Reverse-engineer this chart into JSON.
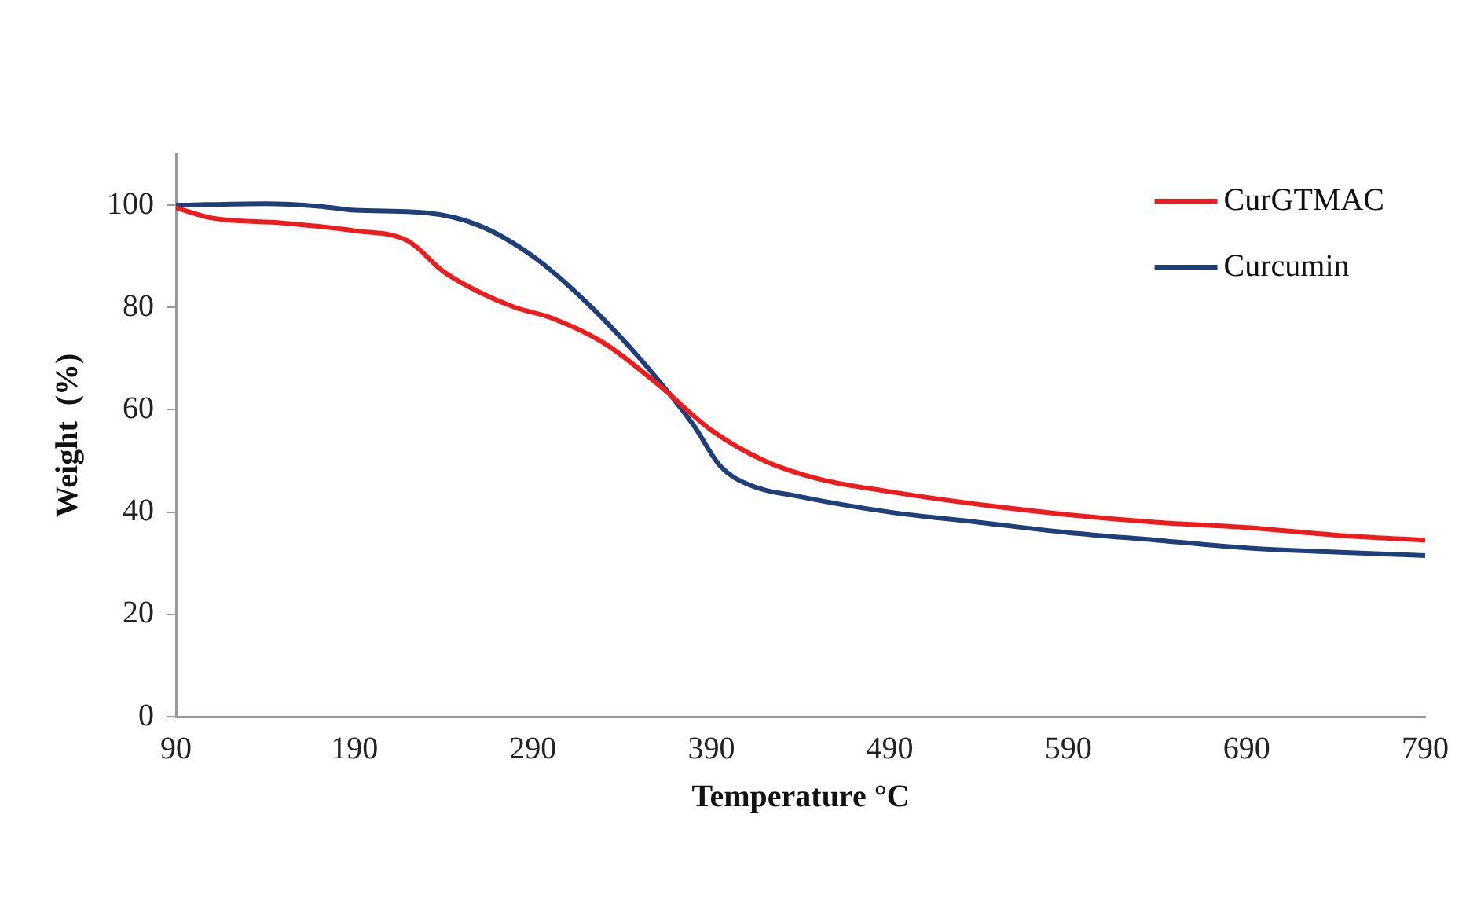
{
  "chart_data": {
    "type": "line",
    "xlabel": "Temperature °C",
    "ylabel": "Weight  (%)",
    "xlim": [
      90,
      790
    ],
    "xticks": [
      90,
      190,
      290,
      390,
      490,
      590,
      690,
      790
    ],
    "ylim": [
      0,
      110
    ],
    "yticks": [
      0,
      20,
      40,
      60,
      80,
      100
    ],
    "grid": false,
    "legend": "top right",
    "marker": "none",
    "line_style": "solid",
    "series": [
      {
        "name": "CurGTMAC",
        "color": "#ee1c1c",
        "x": [
          90,
          110,
          150,
          190,
          220,
          240,
          260,
          280,
          300,
          330,
          360,
          390,
          420,
          450,
          490,
          540,
          590,
          640,
          690,
          740,
          790
        ],
        "values": [
          99.5,
          97.5,
          96.5,
          95,
          93,
          87,
          83,
          80,
          78,
          73,
          65,
          56,
          50,
          46.5,
          44,
          41.5,
          39.5,
          38,
          37,
          35.5,
          34.5
        ]
      },
      {
        "name": "Curcumin",
        "color": "#1f3f7a",
        "x": [
          90,
          140,
          170,
          190,
          230,
          260,
          290,
          320,
          350,
          380,
          395,
          410,
          440,
          490,
          540,
          590,
          640,
          690,
          740,
          790
        ],
        "values": [
          100,
          100.3,
          99.8,
          99,
          98.5,
          96,
          90,
          81,
          70,
          57,
          49,
          45.5,
          43,
          40,
          38,
          36,
          34.5,
          33,
          32.2,
          31.5
        ]
      }
    ]
  }
}
